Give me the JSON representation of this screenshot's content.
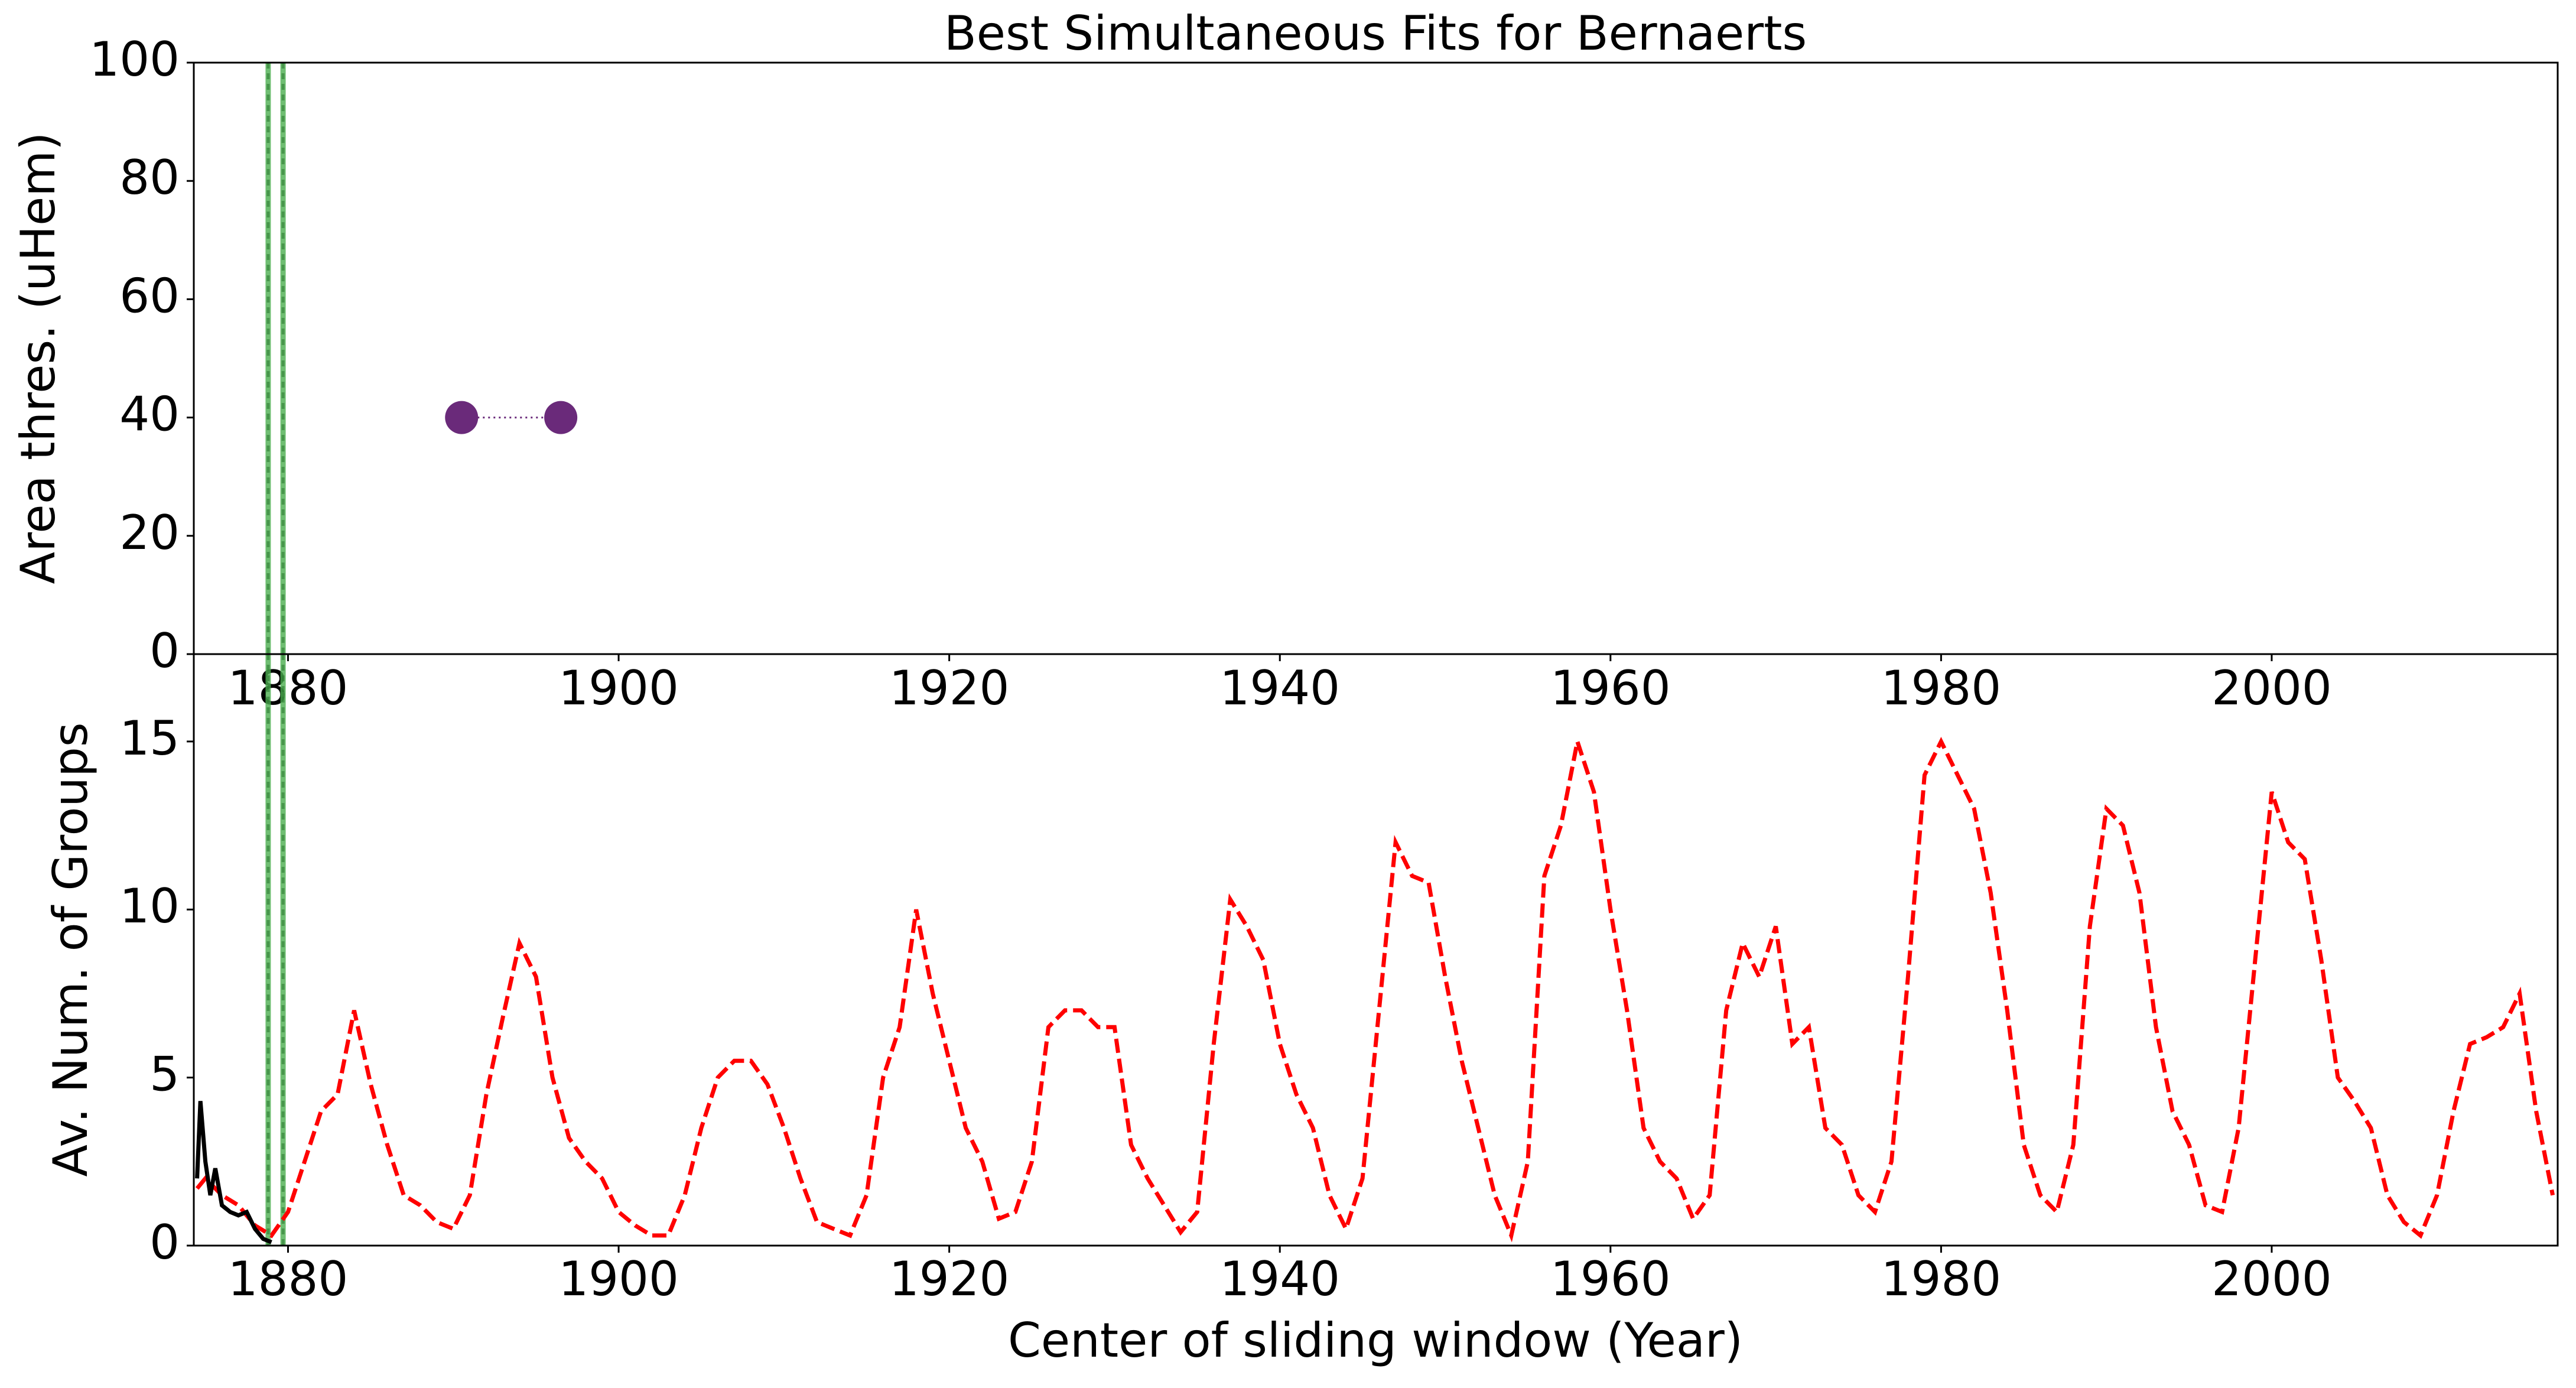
{
  "chart_data": [
    {
      "type": "scatter",
      "title": "Best Simultaneous Fits for Bernaerts",
      "y_label": "Area thres. (uHem)",
      "xlim": [
        1874.3,
        2017.3
      ],
      "ylim": [
        0,
        100
      ],
      "xticks": [
        1880,
        1900,
        1920,
        1940,
        1960,
        1980,
        2000
      ],
      "yticks": [
        0,
        20,
        40,
        60,
        80,
        100
      ],
      "vlines": [
        1878.8,
        1879.7
      ],
      "vline_color": "#4caf50",
      "series": [
        {
          "color": "#6a2a7a",
          "linestyle": "dotted",
          "x": [
            1890.5,
            1896.5
          ],
          "values": [
            40,
            40
          ]
        }
      ]
    },
    {
      "type": "line",
      "x_label": "Center of sliding window (Year)",
      "y_label": "Av. Num. of Groups",
      "xlim": [
        1874.3,
        2017.3
      ],
      "ylim": [
        0,
        17.6
      ],
      "xticks": [
        1880,
        1900,
        1920,
        1940,
        1960,
        1980,
        2000
      ],
      "yticks": [
        0,
        5,
        10,
        15
      ],
      "vlines": [
        1878.8,
        1879.7
      ],
      "vline_color": "#4caf50",
      "series": [
        {
          "color": "#ff0000",
          "linestyle": "dashed",
          "x": [
            1874.5,
            1875,
            1876,
            1877,
            1878,
            1879,
            1880,
            1881,
            1882,
            1883,
            1884,
            1885,
            1886,
            1887,
            1888,
            1889,
            1890,
            1891,
            1892,
            1893,
            1894,
            1895,
            1896,
            1897,
            1898,
            1899,
            1900,
            1901,
            1902,
            1903,
            1904,
            1905,
            1906,
            1907,
            1908,
            1909,
            1910,
            1911,
            1912,
            1913,
            1914,
            1915,
            1916,
            1917,
            1918,
            1919,
            1920,
            1921,
            1922,
            1923,
            1924,
            1925,
            1926,
            1927,
            1928,
            1929,
            1930,
            1931,
            1932,
            1933,
            1934,
            1935,
            1936,
            1937,
            1938,
            1939,
            1940,
            1941,
            1942,
            1943,
            1944,
            1945,
            1946,
            1947,
            1948,
            1949,
            1950,
            1951,
            1952,
            1953,
            1954,
            1955,
            1956,
            1957,
            1958,
            1959,
            1960,
            1961,
            1962,
            1963,
            1964,
            1965,
            1966,
            1967,
            1968,
            1969,
            1970,
            1971,
            1972,
            1973,
            1974,
            1975,
            1976,
            1977,
            1978,
            1979,
            1980,
            1981,
            1982,
            1983,
            1984,
            1985,
            1986,
            1987,
            1988,
            1989,
            1990,
            1991,
            1992,
            1993,
            1994,
            1995,
            1996,
            1997,
            1998,
            1999,
            2000,
            2001,
            2002,
            2003,
            2004,
            2005,
            2006,
            2007,
            2008,
            2009,
            2010,
            2011,
            2012,
            2013,
            2014,
            2015,
            2016,
            2017
          ],
          "values": [
            1.7,
            2.0,
            1.5,
            1.2,
            0.6,
            0.3,
            1.0,
            2.5,
            4.0,
            4.5,
            7.0,
            4.8,
            3.0,
            1.5,
            1.2,
            0.7,
            0.5,
            1.5,
            4.5,
            6.8,
            9.0,
            8.0,
            5.0,
            3.2,
            2.5,
            2.0,
            1.0,
            0.6,
            0.3,
            0.3,
            1.5,
            3.5,
            5.0,
            5.5,
            5.5,
            4.8,
            3.5,
            2.0,
            0.7,
            0.5,
            0.3,
            1.5,
            5.0,
            6.5,
            10.0,
            7.5,
            5.5,
            3.5,
            2.5,
            0.8,
            1.0,
            2.5,
            6.5,
            7.0,
            7.0,
            6.5,
            6.5,
            3.0,
            2.0,
            1.2,
            0.4,
            1.0,
            6.0,
            10.3,
            9.5,
            8.5,
            6.0,
            4.5,
            3.5,
            1.5,
            0.5,
            2.0,
            7.0,
            12.0,
            11.0,
            10.8,
            8.0,
            5.5,
            3.5,
            1.5,
            0.3,
            2.5,
            11.0,
            12.5,
            15.0,
            13.5,
            10.0,
            7.0,
            3.5,
            2.5,
            2.0,
            0.8,
            1.5,
            7.0,
            9.0,
            8.0,
            9.5,
            6.0,
            6.5,
            3.5,
            3.0,
            1.5,
            1.0,
            2.5,
            8.0,
            14.0,
            15.0,
            14.0,
            13.0,
            10.5,
            7.0,
            3.0,
            1.5,
            1.0,
            3.0,
            9.5,
            13.0,
            12.5,
            10.5,
            6.5,
            4.0,
            3.0,
            1.2,
            1.0,
            3.5,
            8.5,
            13.5,
            12.0,
            11.5,
            8.5,
            5.0,
            4.3,
            3.5,
            1.5,
            0.7,
            0.3,
            1.5,
            4.0,
            6.0,
            6.2,
            6.5,
            7.5,
            4.0,
            1.5
          ]
        },
        {
          "color": "#000000",
          "linestyle": "solid",
          "x": [
            1874.5,
            1874.7,
            1875,
            1875.3,
            1875.6,
            1876,
            1876.5,
            1877,
            1877.5,
            1878,
            1878.5,
            1879
          ],
          "values": [
            2.0,
            4.3,
            2.5,
            1.5,
            2.3,
            1.2,
            1.0,
            0.9,
            1.0,
            0.5,
            0.2,
            0.1
          ]
        }
      ]
    }
  ]
}
